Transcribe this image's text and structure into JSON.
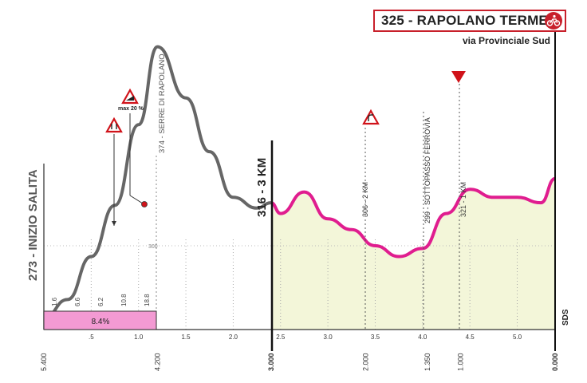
{
  "finish": {
    "title": "325 - RAPOLANO TERME",
    "subtitle": "via Provinciale Sud",
    "icon": "finish-cyclist-icon",
    "color": "#c8202b"
  },
  "labels": {
    "start_climb": "273 - INIZIO SALITA",
    "serre": "374 - SERRE DI RAPOLANO",
    "three_km": "316 - 3 KM",
    "two_km": "306 - 2 KM",
    "sottopasso": "299 - SOTTOPASSO FERROVIA",
    "one_km": "321 - 1 KM",
    "max_grade": "max 20 %",
    "altitude_ref": "300",
    "sds": "SDS"
  },
  "gradients": [
    "1.6",
    "6.6",
    "6.2",
    "10.8",
    "18.8"
  ],
  "avg_gradient": "8.4%",
  "distance_ticks": [
    ".5",
    "1.0",
    "1.5",
    "2.0",
    "2.5",
    "3.0",
    "3.5",
    "4.0",
    "4.5",
    "5.0"
  ],
  "remaining": [
    "5.400",
    "4.200",
    "3.000",
    "2.000",
    "1.350",
    "1.000",
    "0.000"
  ],
  "colors": {
    "climb": "#666666",
    "final": "#e01d8f",
    "fill_final": "#f3f6d9",
    "grade_box": "#f39ad3"
  },
  "chart_data": {
    "type": "line",
    "xlabel": "",
    "ylabel": "",
    "series": [
      {
        "x": [
          0,
          0.25,
          0.5,
          0.75,
          1.0,
          1.2,
          1.5,
          1.75,
          2.0,
          2.25,
          2.4,
          2.5,
          2.75,
          3.0,
          3.25,
          3.5,
          3.75,
          4.0,
          4.25,
          4.5,
          4.75,
          5.0,
          5.25,
          5.4
        ],
        "y": [
          273,
          280,
          296,
          315,
          345,
          374,
          355,
          335,
          318,
          314,
          316,
          312,
          320,
          310,
          306,
          300,
          296,
          299,
          312,
          321,
          318,
          318,
          316,
          325
        ]
      }
    ],
    "annotations": [
      "273 - INIZIO SALITA",
      "374 - SERRE DI RAPOLANO",
      "316 - 3 KM",
      "306 - 2 KM",
      "299 - SOTTOPASSO FERROVIA",
      "321 - 1 KM",
      "max 20 %"
    ]
  }
}
